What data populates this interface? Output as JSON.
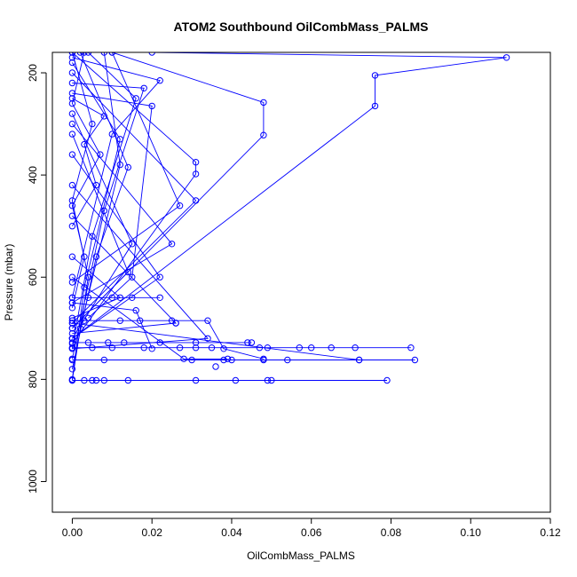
{
  "chart_data": {
    "type": "line",
    "title": "ATOM2 Southbound OilCombMass_PALMS",
    "xlabel": "OilCombMass_PALMS",
    "ylabel": "Pressure (mbar)",
    "xlim": [
      -0.005,
      0.12
    ],
    "ylim": [
      1060,
      160
    ],
    "y_reversed": true,
    "grid": false,
    "legend": "none",
    "series_color": "#0000ff",
    "x_ticks": [
      {
        "value": 0.0,
        "label": "0.00"
      },
      {
        "value": 0.02,
        "label": "0.02"
      },
      {
        "value": 0.04,
        "label": "0.04"
      },
      {
        "value": 0.06,
        "label": "0.06"
      },
      {
        "value": 0.08,
        "label": "0.08"
      },
      {
        "value": 0.1,
        "label": "0.10"
      },
      {
        "value": 0.12,
        "label": "0.12"
      }
    ],
    "y_ticks": [
      {
        "value": 200,
        "label": "200"
      },
      {
        "value": 400,
        "label": "400"
      },
      {
        "value": 600,
        "label": "600"
      },
      {
        "value": 800,
        "label": "800"
      },
      {
        "value": 1000,
        "label": "1000"
      }
    ],
    "series": [
      {
        "points": [
          [
            0.0,
            802
          ],
          [
            0.079,
            802
          ]
        ]
      },
      {
        "points": [
          [
            0.0,
            762
          ],
          [
            0.086,
            762
          ]
        ]
      },
      {
        "points": [
          [
            0.0,
            738
          ],
          [
            0.085,
            738
          ]
        ]
      },
      {
        "points": [
          [
            0.0,
            728
          ],
          [
            0.045,
            728
          ]
        ]
      },
      {
        "points": [
          [
            0.0,
            640
          ],
          [
            0.022,
            640
          ]
        ]
      },
      {
        "points": [
          [
            0.0,
            685
          ],
          [
            0.034,
            685
          ],
          [
            0.038,
            740
          ],
          [
            0.048,
            760
          ]
        ]
      },
      {
        "points": [
          [
            0.02,
            160
          ],
          [
            0.109,
            170
          ],
          [
            0.076,
            205
          ],
          [
            0.076,
            265
          ],
          [
            0.0,
            720
          ]
        ]
      },
      {
        "points": [
          [
            0.01,
            160
          ],
          [
            0.048,
            258
          ],
          [
            0.048,
            322
          ],
          [
            0.0,
            700
          ]
        ]
      },
      {
        "points": [
          [
            0.0,
            160
          ],
          [
            0.031,
            375
          ],
          [
            0.031,
            398
          ],
          [
            0.0,
            730
          ]
        ]
      },
      {
        "points": [
          [
            0.0,
            200
          ],
          [
            0.031,
            450
          ],
          [
            0.0,
            690
          ]
        ]
      },
      {
        "points": [
          [
            0.0,
            170
          ],
          [
            0.022,
            215
          ],
          [
            0.01,
            320
          ],
          [
            0.0,
            640
          ]
        ]
      },
      {
        "points": [
          [
            0.004,
            160
          ],
          [
            0.016,
            250
          ],
          [
            0.005,
            520
          ],
          [
            0.0,
            740
          ]
        ]
      },
      {
        "points": [
          [
            0.0,
            220
          ],
          [
            0.018,
            230
          ],
          [
            0.008,
            470
          ],
          [
            0.0,
            760
          ]
        ]
      },
      {
        "points": [
          [
            0.002,
            160
          ],
          [
            0.014,
            385
          ],
          [
            0.006,
            560
          ],
          [
            0.0,
            780
          ]
        ]
      },
      {
        "points": [
          [
            0.0,
            180
          ],
          [
            0.012,
            330
          ],
          [
            0.003,
            620
          ],
          [
            0.0,
            800
          ]
        ]
      },
      {
        "points": [
          [
            0.01,
            160
          ],
          [
            0.027,
            460
          ],
          [
            0.0,
            610
          ]
        ]
      },
      {
        "points": [
          [
            0.0,
            240
          ],
          [
            0.02,
            265
          ],
          [
            0.015,
            600
          ],
          [
            0.004,
            680
          ]
        ]
      },
      {
        "points": [
          [
            0.0,
            280
          ],
          [
            0.015,
            535
          ],
          [
            0.0,
            720
          ]
        ]
      },
      {
        "points": [
          [
            0.008,
            160
          ],
          [
            0.012,
            380
          ],
          [
            0.002,
            700
          ]
        ]
      },
      {
        "points": [
          [
            0.0,
            300
          ],
          [
            0.025,
            535
          ],
          [
            0.0,
            650
          ]
        ]
      },
      {
        "points": [
          [
            0.0,
            320
          ],
          [
            0.014,
            590
          ],
          [
            0.0,
            700
          ]
        ]
      },
      {
        "points": [
          [
            0.0,
            360
          ],
          [
            0.022,
            600
          ],
          [
            0.0,
            720
          ]
        ]
      },
      {
        "points": [
          [
            0.0,
            160
          ],
          [
            0.005,
            300
          ],
          [
            0.0,
            450
          ],
          [
            0.004,
            600
          ],
          [
            0.0,
            802
          ]
        ]
      },
      {
        "points": [
          [
            0.0,
            420
          ],
          [
            0.034,
            720
          ],
          [
            0.0,
            740
          ]
        ]
      },
      {
        "points": [
          [
            0.0,
            480
          ],
          [
            0.026,
            690
          ],
          [
            0.0,
            710
          ]
        ]
      },
      {
        "points": [
          [
            0.0,
            560
          ],
          [
            0.012,
            640
          ],
          [
            0.0,
            680
          ]
        ]
      },
      {
        "points": [
          [
            0.0,
            600
          ],
          [
            0.028,
            760
          ],
          [
            0.039,
            760
          ]
        ]
      },
      {
        "points": [
          [
            0.0,
            650
          ],
          [
            0.016,
            665
          ],
          [
            0.02,
            740
          ]
        ]
      },
      {
        "points": [
          [
            0.0,
            690
          ],
          [
            0.072,
            762
          ]
        ]
      },
      {
        "points": [
          [
            0.0,
            250
          ],
          [
            0.008,
            285
          ],
          [
            0.003,
            340
          ],
          [
            0.006,
            420
          ],
          [
            0.0,
            500
          ]
        ]
      },
      {
        "points": [
          [
            0.003,
            160
          ],
          [
            0.0,
            260
          ],
          [
            0.007,
            360
          ],
          [
            0.0,
            460
          ],
          [
            0.003,
            560
          ],
          [
            0.0,
            660
          ]
        ]
      }
    ],
    "extra_markers": [
      [
        0.003,
        802
      ],
      [
        0.005,
        802
      ],
      [
        0.006,
        802
      ],
      [
        0.008,
        802
      ],
      [
        0.014,
        802
      ],
      [
        0.031,
        802
      ],
      [
        0.041,
        802
      ],
      [
        0.049,
        802
      ],
      [
        0.05,
        802
      ],
      [
        0.03,
        762
      ],
      [
        0.038,
        762
      ],
      [
        0.04,
        762
      ],
      [
        0.048,
        762
      ],
      [
        0.054,
        762
      ],
      [
        0.072,
        762
      ],
      [
        0.008,
        762
      ],
      [
        0.005,
        738
      ],
      [
        0.01,
        738
      ],
      [
        0.018,
        738
      ],
      [
        0.027,
        738
      ],
      [
        0.031,
        738
      ],
      [
        0.035,
        738
      ],
      [
        0.047,
        738
      ],
      [
        0.049,
        738
      ],
      [
        0.057,
        738
      ],
      [
        0.06,
        738
      ],
      [
        0.065,
        738
      ],
      [
        0.071,
        738
      ],
      [
        0.004,
        728
      ],
      [
        0.009,
        728
      ],
      [
        0.013,
        728
      ],
      [
        0.022,
        728
      ],
      [
        0.031,
        728
      ],
      [
        0.044,
        728
      ],
      [
        0.003,
        685
      ],
      [
        0.012,
        685
      ],
      [
        0.017,
        685
      ],
      [
        0.025,
        685
      ],
      [
        0.026,
        690
      ],
      [
        0.036,
        775
      ],
      [
        0.004,
        640
      ],
      [
        0.01,
        640
      ],
      [
        0.015,
        640
      ]
    ]
  }
}
